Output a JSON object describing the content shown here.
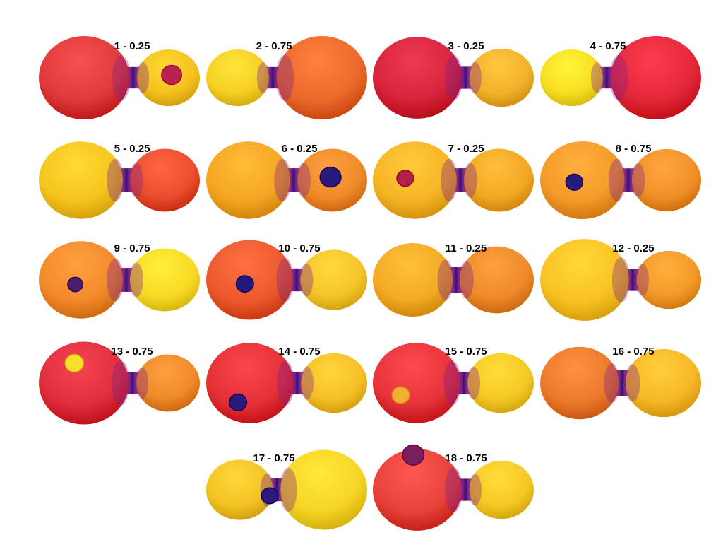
{
  "panels": [
    {
      "label": "1 - 0.25",
      "mirror": false,
      "q": 0.5,
      "primary": "#e23a3a",
      "secondary": "#f4c21e",
      "spot": {
        "on": "secondary",
        "dx": 0.1,
        "dy": -0.1,
        "r": 0.32,
        "color": "#b8224f"
      }
    },
    {
      "label": "2 - 0.75",
      "mirror": true,
      "q": 0.5,
      "primary": "#ec6a2a",
      "secondary": "#f6cf24",
      "spot": null
    },
    {
      "label": "3 - 0.25",
      "mirror": false,
      "q": 0.55,
      "primary": "#d8243c",
      "secondary": "#f2b22a",
      "spot": null
    },
    {
      "label": "4 - 0.75",
      "mirror": true,
      "q": 0.5,
      "primary": "#e4283a",
      "secondary": "#f8de22",
      "spot": null
    },
    {
      "label": "5 - 0.25",
      "mirror": false,
      "q": 0.72,
      "primary": "#f6c41e",
      "secondary": "#ea4e2e",
      "spot": null
    },
    {
      "label": "6 - 0.25",
      "mirror": false,
      "q": 0.72,
      "primary": "#f4a622",
      "secondary": "#f08a2a",
      "spot": {
        "on": "secondary",
        "dx": -0.05,
        "dy": -0.1,
        "r": 0.3,
        "color": "#2a1a7a"
      }
    },
    {
      "label": "7 - 0.25",
      "mirror": false,
      "q": 0.72,
      "primary": "#f6b424",
      "secondary": "#f4a824",
      "spot": {
        "on": "primary",
        "dx": 0.38,
        "dy": -0.05,
        "r": 0.2,
        "color": "#b0204a"
      }
    },
    {
      "label": "8 - 0.75",
      "mirror": false,
      "q": 0.7,
      "primary": "#f49a28",
      "secondary": "#f29028",
      "spot": {
        "on": "primary",
        "dx": 0.32,
        "dy": 0.05,
        "r": 0.2,
        "color": "#2a1a7a"
      }
    },
    {
      "label": "9 - 0.75",
      "mirror": false,
      "q": 0.72,
      "primary": "#f28a2a",
      "secondary": "#f8da24",
      "spot": {
        "on": "primary",
        "dx": 0.22,
        "dy": 0.12,
        "r": 0.18,
        "color": "#4a1c6e"
      }
    },
    {
      "label": "10 - 0.75",
      "mirror": false,
      "q": 0.62,
      "primary": "#ec5a2c",
      "secondary": "#f6c428",
      "spot": {
        "on": "primary",
        "dx": 0.18,
        "dy": 0.1,
        "r": 0.2,
        "color": "#22187e"
      }
    },
    {
      "label": "11 - 0.25",
      "mirror": false,
      "q": 0.9,
      "primary": "#f4aa24",
      "secondary": "#ee8a2a",
      "spot": null
    },
    {
      "label": "12 - 0.25",
      "mirror": false,
      "q": 0.55,
      "primary": "#f8c222",
      "secondary": "#f29a28",
      "spot": null
    },
    {
      "label": "13 - 0.75",
      "mirror": false,
      "q": 0.52,
      "primary": "#e02e3c",
      "secondary": "#ee8a2a",
      "spot": {
        "on": "primary",
        "dx": 0.35,
        "dy": -0.48,
        "r": 0.2,
        "color": "#f6e028"
      }
    },
    {
      "label": "14 - 0.75",
      "mirror": false,
      "q": 0.6,
      "primary": "#e63038",
      "secondary": "#f6c026",
      "spot": {
        "on": "primary",
        "dx": 0.45,
        "dy": 0.48,
        "r": 0.2,
        "color": "#2a1a7a"
      }
    },
    {
      "label": "15 - 0.75",
      "mirror": false,
      "q": 0.6,
      "primary": "#e6343a",
      "secondary": "#f6c824",
      "spot": {
        "on": "primary",
        "dx": 0.6,
        "dy": 0.3,
        "r": 0.2,
        "color": "#f2ae30"
      }
    },
    {
      "label": "16 - 0.75",
      "mirror": false,
      "q": 0.96,
      "primary": "#ec7a2c",
      "secondary": "#f6b826",
      "spot": null
    },
    {
      "label": "17 - 0.75",
      "mirror": true,
      "q": 0.62,
      "primary": "#f6d424",
      "secondary": "#f4c224",
      "spot": {
        "on": "secondary",
        "dx": -0.9,
        "dy": 0.2,
        "r": 0.25,
        "color": "#2a1a7a"
      }
    },
    {
      "label": "18 - 0.75",
      "mirror": false,
      "q": 0.55,
      "primary": "#e8423a",
      "secondary": "#f6c824",
      "spot": {
        "on": "primary",
        "dx": 0.15,
        "dy": -0.85,
        "r": 0.24,
        "color": "#7a1e5e"
      }
    }
  ],
  "colors": {
    "neck": "#2a1574",
    "neckMid": "#7a1f8c",
    "background": "#ffffff"
  }
}
